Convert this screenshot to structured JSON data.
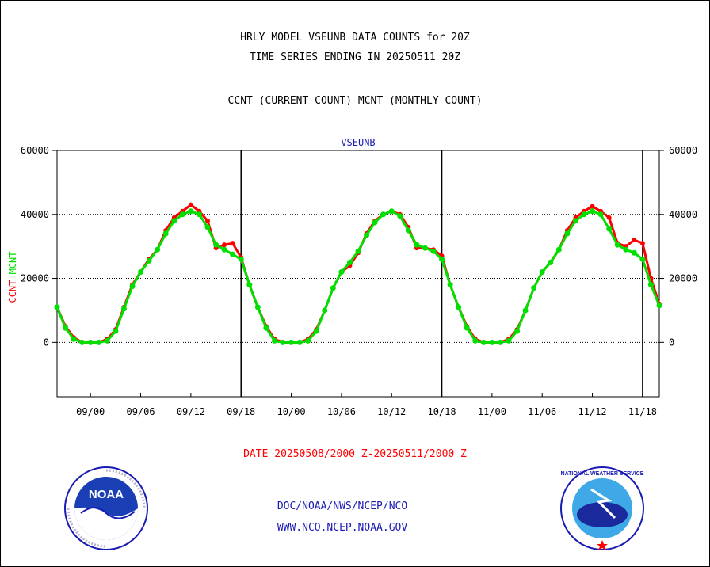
{
  "header": {
    "title_line1": "HRLY MODEL VSEUNB DATA COUNTS for 20Z",
    "title_line2": "TIME SERIES ENDING IN 20250511 20Z",
    "subtitle": "CCNT (CURRENT COUNT) MCNT (MONTHLY COUNT)"
  },
  "footer": {
    "date_range": "DATE 20250508/2000 Z-20250511/2000 Z",
    "org_line": "DOC/NOAA/NWS/NCEP/NCO",
    "url_line": "WWW.NCO.NCEP.NOAA.GOV"
  },
  "logos": {
    "left_text": "NOAA",
    "right_text": "NATIONAL WEATHER SERVICE"
  },
  "colors": {
    "ccnt": "#ff0000",
    "mcnt": "#00e000",
    "title_small": "#1a1ab4",
    "date_text": "#ff0000"
  },
  "chart_data": {
    "type": "line",
    "title": "VSEUNB",
    "ylabel_parts": [
      "CCNT",
      "MCNT"
    ],
    "ylim": [
      -17000,
      60000
    ],
    "yticks": [
      0,
      20000,
      40000,
      60000
    ],
    "ytick_labels": [
      "0",
      "20000",
      "40000",
      "60000"
    ],
    "x_tick_labels": [
      "09/00",
      "09/06",
      "09/12",
      "09/18",
      "10/00",
      "10/06",
      "10/12",
      "10/18",
      "11/00",
      "11/06",
      "11/12",
      "11/18"
    ],
    "x_tick_positions": [
      4,
      10,
      16,
      22,
      28,
      34,
      40,
      46,
      52,
      58,
      64,
      70
    ],
    "xlim": [
      0,
      72
    ],
    "day_dividers": [
      22,
      46,
      70
    ],
    "grid_horizontal": [
      0,
      20000,
      40000
    ],
    "series": [
      {
        "name": "CCNT",
        "color": "#ff0000",
        "values": [
          11000,
          5000,
          1500,
          0,
          0,
          0,
          1000,
          4000,
          11000,
          18000,
          22000,
          26000,
          29000,
          35000,
          39000,
          41000,
          43000,
          41000,
          38000,
          29500,
          30500,
          31000,
          26500,
          18000,
          11000,
          5000,
          1000,
          0,
          0,
          0,
          1000,
          4000,
          10000,
          17000,
          22000,
          24000,
          28000,
          34000,
          38000,
          40000,
          41000,
          40000,
          36000,
          29500,
          29500,
          29000,
          27000,
          18000,
          11000,
          5000,
          1000,
          0,
          0,
          0,
          1000,
          4000,
          10000,
          17000,
          22000,
          25000,
          29000,
          35000,
          39000,
          41000,
          42500,
          41000,
          39000,
          31000,
          30000,
          32000,
          31000,
          20000,
          12000
        ]
      },
      {
        "name": "MCNT",
        "color": "#00e000",
        "values": [
          11000,
          4500,
          1000,
          0,
          0,
          0,
          500,
          3500,
          10500,
          17500,
          22000,
          25500,
          29000,
          34000,
          38000,
          40000,
          41000,
          40000,
          36000,
          30500,
          29000,
          27500,
          26000,
          18000,
          11000,
          4500,
          500,
          0,
          0,
          0,
          500,
          3500,
          10000,
          17000,
          22000,
          25000,
          28500,
          33500,
          37500,
          40000,
          41000,
          39500,
          35000,
          30500,
          29500,
          28500,
          26000,
          18000,
          11000,
          4500,
          500,
          0,
          0,
          0,
          500,
          3500,
          10000,
          17000,
          22000,
          25000,
          29000,
          34000,
          38000,
          40000,
          41000,
          40000,
          35500,
          30500,
          29000,
          28000,
          26000,
          18000,
          11500
        ]
      }
    ]
  }
}
